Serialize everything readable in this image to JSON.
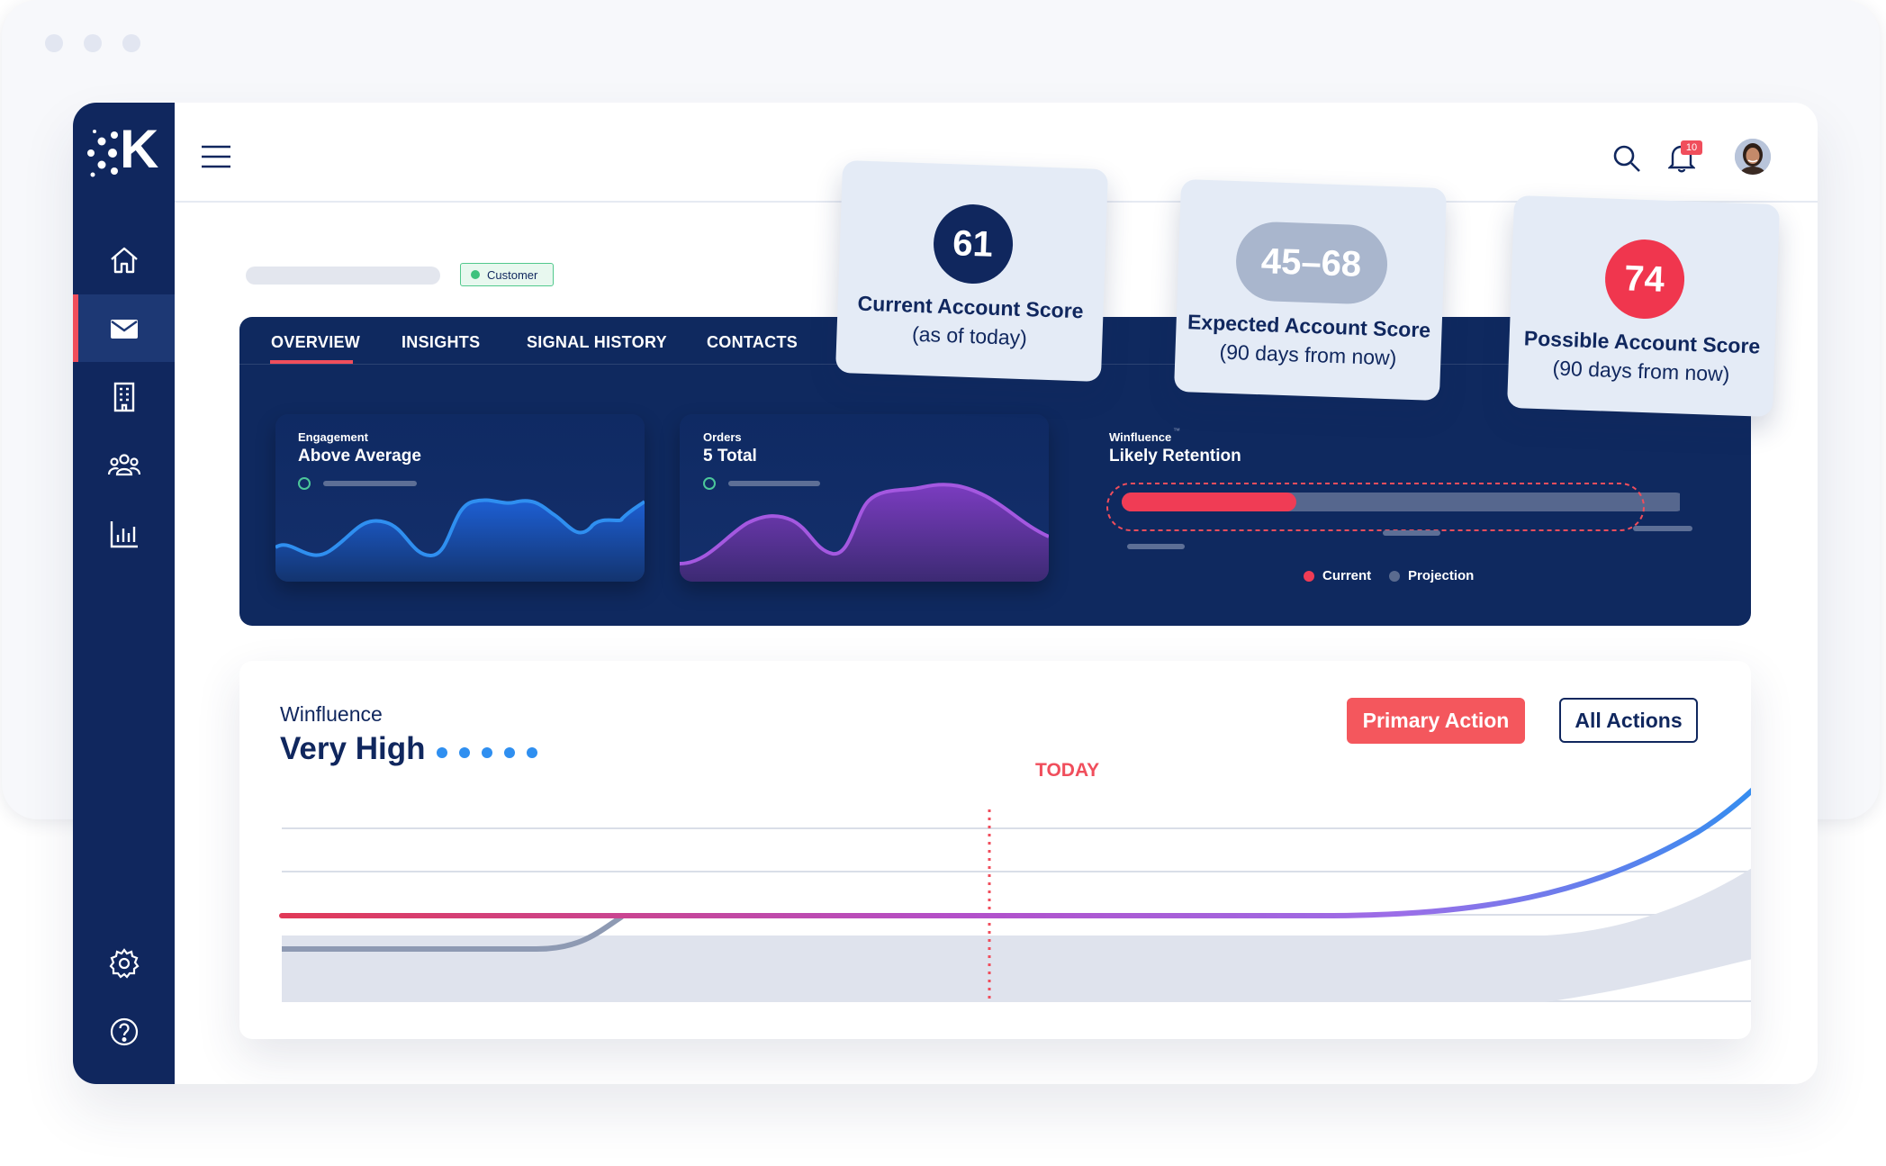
{
  "brand": {
    "logo_letter": "K"
  },
  "sidebar": {
    "items": [
      {
        "icon": "home-icon"
      },
      {
        "icon": "mail-icon",
        "active": true
      },
      {
        "icon": "building-icon"
      },
      {
        "icon": "users-icon"
      },
      {
        "icon": "bar-chart-icon"
      }
    ],
    "bottom": [
      {
        "icon": "gear-icon"
      },
      {
        "icon": "help-icon"
      }
    ]
  },
  "header": {
    "notifications_count": "10"
  },
  "account": {
    "status_badge": "Customer"
  },
  "tabs": [
    {
      "label": "OVERVIEW",
      "active": true
    },
    {
      "label": "INSIGHTS"
    },
    {
      "label": "SIGNAL HISTORY"
    },
    {
      "label": "CONTACTS"
    }
  ],
  "cards": {
    "engagement": {
      "label": "Engagement",
      "value": "Above Average"
    },
    "orders": {
      "label": "Orders",
      "value": "5 Total"
    },
    "retention": {
      "label": "Winfluence",
      "trademark": "™",
      "value": "Likely Retention",
      "current_fraction": 0.31,
      "legend": [
        {
          "label": "Current",
          "color": "#f03c55"
        },
        {
          "label": "Projection",
          "color": "#5a6b8f"
        }
      ]
    }
  },
  "scores": [
    {
      "value": "61",
      "title": "Current Account Score",
      "subtitle": "(as of today)",
      "color": "#10275e"
    },
    {
      "value": "45–68",
      "title": "Expected Account Score",
      "subtitle": "(90 days from now)",
      "color": "#a9b6cd"
    },
    {
      "value": "74",
      "title": "Possible Account Score",
      "subtitle": "(90 days from now)",
      "color": "#f0364e"
    }
  ],
  "winfluence": {
    "label": "Winfluence",
    "level": "Very High",
    "dots_filled": 5,
    "today_label": "TODAY",
    "primary_action": "Primary Action",
    "all_actions": "All Actions"
  },
  "colors": {
    "navy": "#10275e",
    "accent_red": "#f4575d",
    "blue": "#2f8ff0",
    "purple": "#9b4fd6"
  }
}
